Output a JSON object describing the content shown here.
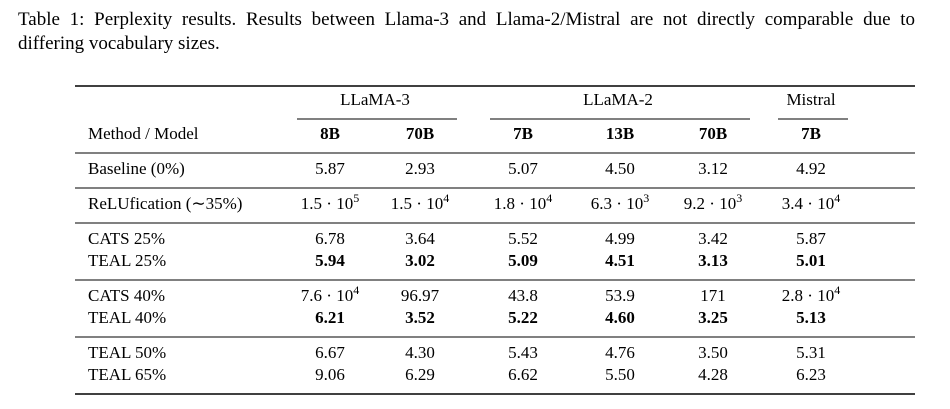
{
  "caption": "Table 1: Perplexity results. Results between Llama-3 and Llama-2/Mistral are not directly comparable due to differing vocabulary sizes.",
  "table": {
    "groups": [
      {
        "label": "LLaMA-3",
        "span": 2
      },
      {
        "label": "LLaMA-2",
        "span": 3
      },
      {
        "label": "Mistral",
        "span": 1
      }
    ],
    "header": [
      "Method / Model",
      "8B",
      "70B",
      "7B",
      "13B",
      "70B",
      "7B"
    ],
    "row_groups": [
      {
        "rows": [
          {
            "cells": [
              "Baseline (0%)",
              "5.87",
              "2.93",
              "5.07",
              "4.50",
              "3.12",
              "4.92"
            ],
            "bold": false
          }
        ]
      },
      {
        "rows": [
          {
            "cells": [
              "ReLUfication (∼35%)",
              {
                "text": "1.5 · 10",
                "sup": "5"
              },
              {
                "text": "1.5 · 10",
                "sup": "4"
              },
              {
                "text": "1.8 · 10",
                "sup": "4"
              },
              {
                "text": "6.3 · 10",
                "sup": "3"
              },
              {
                "text": "9.2 · 10",
                "sup": "3"
              },
              {
                "text": "3.4 · 10",
                "sup": "4"
              }
            ],
            "bold": false
          }
        ]
      },
      {
        "rows": [
          {
            "cells": [
              "CATS 25%",
              "6.78",
              "3.64",
              "5.52",
              "4.99",
              "3.42",
              "5.87"
            ],
            "bold": false
          },
          {
            "cells": [
              "TEAL 25%",
              "5.94",
              "3.02",
              "5.09",
              "4.51",
              "3.13",
              "5.01"
            ],
            "bold": true
          }
        ]
      },
      {
        "rows": [
          {
            "cells": [
              "CATS 40%",
              {
                "text": "7.6 · 10",
                "sup": "4"
              },
              "96.97",
              "43.8",
              "53.9",
              "171",
              {
                "text": "2.8 · 10",
                "sup": "4"
              }
            ],
            "bold": false
          },
          {
            "cells": [
              "TEAL 40%",
              "6.21",
              "3.52",
              "5.22",
              "4.60",
              "3.25",
              "5.13"
            ],
            "bold": true
          }
        ]
      },
      {
        "rows": [
          {
            "cells": [
              "TEAL 50%",
              "6.67",
              "4.30",
              "5.43",
              "4.76",
              "3.50",
              "5.31"
            ],
            "bold": false
          },
          {
            "cells": [
              "TEAL 65%",
              "9.06",
              "6.29",
              "6.62",
              "5.50",
              "4.28",
              "6.23"
            ],
            "bold": false
          }
        ]
      }
    ]
  }
}
